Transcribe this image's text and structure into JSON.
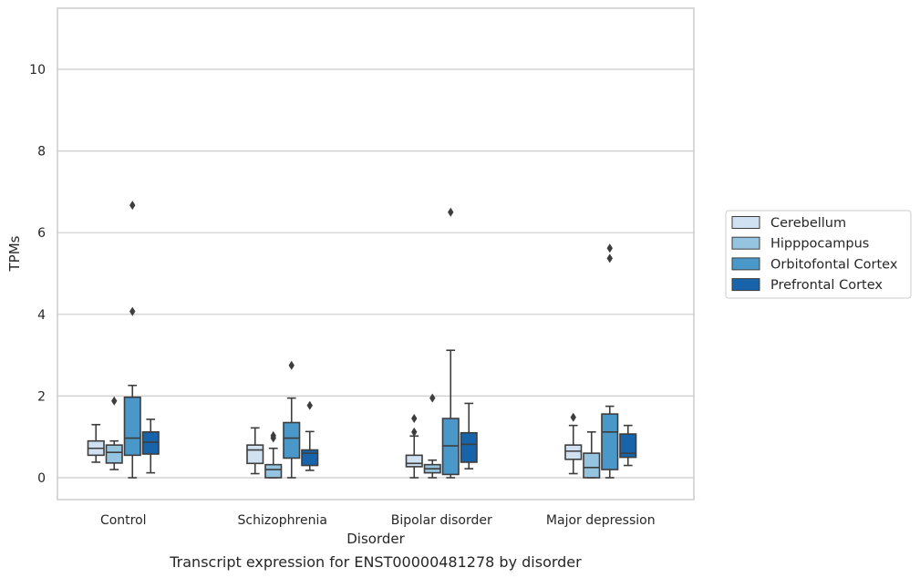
{
  "chart_data": {
    "type": "box",
    "title": "Transcript expression for ENST00000481278 by disorder",
    "xlabel": "Disorder",
    "ylabel": "TPMs",
    "ylim": [
      -0.5,
      11.5
    ],
    "yticks": [
      0,
      2,
      4,
      6,
      8,
      10
    ],
    "grid": "horizontal",
    "legend_position": "right",
    "categories": [
      "Control",
      "Schizophrenia",
      "Bipolar disorder",
      "Major depression"
    ],
    "series": [
      {
        "name": "Cerebellum",
        "color": "#d0e1f2",
        "boxes": [
          {
            "whislo": 0.38,
            "q1": 0.55,
            "med": 0.72,
            "q3": 0.9,
            "whishi": 1.3,
            "fliers": []
          },
          {
            "whislo": 0.1,
            "q1": 0.35,
            "med": 0.68,
            "q3": 0.8,
            "whishi": 1.22,
            "fliers": []
          },
          {
            "whislo": 0.0,
            "q1": 0.27,
            "med": 0.35,
            "q3": 0.55,
            "whishi": 1.02,
            "fliers": [
              1.12,
              1.45
            ]
          },
          {
            "whislo": 0.1,
            "q1": 0.45,
            "med": 0.65,
            "q3": 0.8,
            "whishi": 1.28,
            "fliers": [
              1.48
            ]
          }
        ]
      },
      {
        "name": "Hipppocampus",
        "color": "#94c4df",
        "boxes": [
          {
            "whislo": 0.2,
            "q1": 0.36,
            "med": 0.62,
            "q3": 0.8,
            "whishi": 0.9,
            "fliers": [
              1.88
            ]
          },
          {
            "whislo": 0.0,
            "q1": 0.0,
            "med": 0.2,
            "q3": 0.32,
            "whishi": 0.72,
            "fliers": [
              0.97,
              1.03
            ]
          },
          {
            "whislo": 0.0,
            "q1": 0.12,
            "med": 0.22,
            "q3": 0.32,
            "whishi": 0.43,
            "fliers": [
              1.95
            ]
          },
          {
            "whislo": 0.0,
            "q1": 0.0,
            "med": 0.25,
            "q3": 0.6,
            "whishi": 1.12,
            "fliers": []
          }
        ]
      },
      {
        "name": "Orbitofontal Cortex",
        "color": "#4a98c9",
        "boxes": [
          {
            "whislo": 0.0,
            "q1": 0.55,
            "med": 0.97,
            "q3": 1.97,
            "whishi": 2.26,
            "fliers": [
              4.07,
              6.67
            ]
          },
          {
            "whislo": 0.0,
            "q1": 0.48,
            "med": 0.97,
            "q3": 1.35,
            "whishi": 1.95,
            "fliers": [
              2.75
            ]
          },
          {
            "whislo": 0.0,
            "q1": 0.08,
            "med": 0.78,
            "q3": 1.45,
            "whishi": 3.12,
            "fliers": [
              6.5
            ]
          },
          {
            "whislo": 0.0,
            "q1": 0.2,
            "med": 1.12,
            "q3": 1.56,
            "whishi": 1.75,
            "fliers": [
              5.37,
              5.62
            ]
          }
        ]
      },
      {
        "name": "Prefrontal Cortex",
        "color": "#1764ab",
        "boxes": [
          {
            "whislo": 0.12,
            "q1": 0.58,
            "med": 0.87,
            "q3": 1.12,
            "whishi": 1.43,
            "fliers": []
          },
          {
            "whislo": 0.18,
            "q1": 0.3,
            "med": 0.6,
            "q3": 0.68,
            "whishi": 1.13,
            "fliers": [
              1.77
            ]
          },
          {
            "whislo": 0.22,
            "q1": 0.38,
            "med": 0.82,
            "q3": 1.1,
            "whishi": 1.82,
            "fliers": []
          },
          {
            "whislo": 0.3,
            "q1": 0.5,
            "med": 0.6,
            "q3": 1.07,
            "whishi": 1.28,
            "fliers": []
          }
        ]
      }
    ]
  }
}
